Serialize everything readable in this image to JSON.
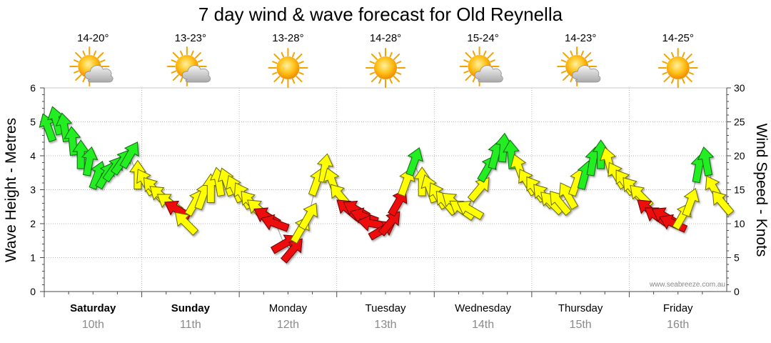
{
  "chart_data": {
    "type": "line",
    "title": "7 day wind & wave forecast for Old Reynella",
    "ylabel_left": "Wave Height - Metres",
    "ylabel_right": "Wind Speed - Knots",
    "ylim_left": [
      0,
      6
    ],
    "ylim_right": [
      0,
      30
    ],
    "yticks_left": [
      "0",
      "1",
      "2",
      "3",
      "4",
      "5",
      "6"
    ],
    "yticks_right": [
      "0",
      "5",
      "10",
      "15",
      "20",
      "25",
      "30"
    ],
    "watermark": "www.seabreeze.com.au",
    "colors": {
      "strong": "#22ee22",
      "moderate": "#ffff00",
      "light": "#ee1111"
    },
    "days": [
      {
        "name": "Saturday",
        "date": "10th",
        "temp": "14-20°",
        "icon": "partly-cloudy-icon",
        "bold": true
      },
      {
        "name": "Sunday",
        "date": "11th",
        "temp": "13-23°",
        "icon": "partly-cloudy-icon",
        "bold": true
      },
      {
        "name": "Monday",
        "date": "12th",
        "temp": "13-28°",
        "icon": "sunny-icon",
        "bold": false
      },
      {
        "name": "Tuesday",
        "date": "13th",
        "temp": "14-28°",
        "icon": "sunny-icon",
        "bold": false
      },
      {
        "name": "Wednesday",
        "date": "14th",
        "temp": "15-24°",
        "icon": "partly-cloudy-icon",
        "bold": false
      },
      {
        "name": "Thursday",
        "date": "15th",
        "temp": "14-23°",
        "icon": "partly-cloudy-icon",
        "bold": false
      },
      {
        "name": "Friday",
        "date": "16th",
        "temp": "14-25°",
        "icon": "sunny-icon",
        "bold": false
      }
    ],
    "wind_series": {
      "name": "Wind speed (knots) with direction arrows, 2-hourly",
      "values": [
        24,
        25,
        24,
        22,
        20,
        19,
        17,
        17,
        18,
        19,
        20,
        17,
        16,
        15,
        14,
        13,
        12,
        10,
        13,
        14,
        15,
        16,
        16,
        15,
        14,
        13,
        12,
        11,
        10,
        7,
        6,
        9,
        11,
        16,
        18,
        16,
        14,
        12,
        12,
        11,
        10,
        9,
        10,
        13,
        16,
        19,
        16,
        15,
        14,
        13,
        13,
        12,
        12,
        15,
        18,
        20,
        21,
        20,
        18,
        16,
        15,
        14,
        13,
        13,
        14,
        16,
        17,
        19,
        20,
        19,
        17,
        16,
        15,
        14,
        12,
        11,
        11,
        10,
        11,
        13,
        18,
        19,
        15,
        13
      ],
      "directions_deg": [
        -20,
        -15,
        -10,
        -5,
        0,
        10,
        20,
        30,
        35,
        35,
        30,
        0,
        -30,
        -40,
        -50,
        -55,
        -60,
        -45,
        30,
        20,
        0,
        -10,
        -20,
        -25,
        -30,
        -40,
        -50,
        -60,
        -70,
        60,
        40,
        30,
        30,
        20,
        10,
        -20,
        -40,
        -50,
        -60,
        -70,
        -80,
        60,
        40,
        30,
        20,
        20,
        0,
        -20,
        -30,
        -40,
        -50,
        -55,
        -60,
        40,
        30,
        15,
        5,
        -5,
        -20,
        -30,
        -35,
        -40,
        -45,
        -40,
        -30,
        20,
        15,
        10,
        0,
        -15,
        -30,
        -35,
        -40,
        -45,
        -50,
        -55,
        -60,
        -65,
        30,
        20,
        10,
        -10,
        -30,
        -40
      ],
      "strength_class": [
        "strong",
        "strong",
        "strong",
        "strong",
        "strong",
        "strong",
        "strong",
        "strong",
        "strong",
        "strong",
        "strong",
        "moderate",
        "moderate",
        "moderate",
        "moderate",
        "moderate",
        "light",
        "moderate",
        "moderate",
        "moderate",
        "moderate",
        "moderate",
        "moderate",
        "moderate",
        "moderate",
        "moderate",
        "moderate",
        "light",
        "light",
        "light",
        "light",
        "moderate",
        "moderate",
        "moderate",
        "moderate",
        "moderate",
        "moderate",
        "light",
        "light",
        "light",
        "light",
        "light",
        "light",
        "light",
        "moderate",
        "strong",
        "moderate",
        "moderate",
        "moderate",
        "moderate",
        "moderate",
        "moderate",
        "moderate",
        "moderate",
        "strong",
        "strong",
        "strong",
        "strong",
        "moderate",
        "moderate",
        "moderate",
        "moderate",
        "moderate",
        "moderate",
        "moderate",
        "moderate",
        "strong",
        "strong",
        "strong",
        "moderate",
        "moderate",
        "moderate",
        "moderate",
        "moderate",
        "light",
        "light",
        "light",
        "light",
        "moderate",
        "moderate",
        "strong",
        "strong",
        "moderate",
        "moderate"
      ]
    }
  }
}
